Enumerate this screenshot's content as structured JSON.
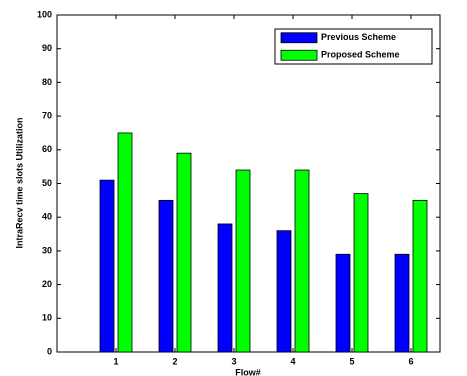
{
  "chart_data": {
    "type": "bar",
    "x_label": "Flow#",
    "y_label": "IntraRecv time slots Utilization",
    "categories": [
      "1",
      "2",
      "3",
      "4",
      "5",
      "6"
    ],
    "series": [
      {
        "name": "Previous Scheme",
        "color": "#0000ff",
        "values": [
          51,
          45,
          38,
          36,
          29,
          29
        ]
      },
      {
        "name": "Proposed Scheme",
        "color": "#00ff00",
        "values": [
          65,
          59,
          54,
          54,
          47,
          45
        ]
      }
    ],
    "ylim": [
      0,
      100
    ],
    "yticks": [
      0,
      10,
      20,
      30,
      40,
      50,
      60,
      70,
      80,
      90,
      100
    ],
    "legend": "upper-right",
    "grid": false
  }
}
